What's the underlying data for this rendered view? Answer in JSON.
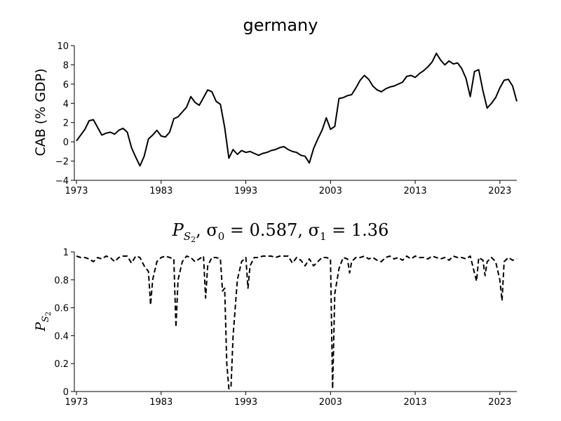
{
  "chart_data": [
    {
      "type": "line",
      "title": "germany",
      "ylabel": "CAB (% GDP)",
      "xlabel": "",
      "xlim": [
        1972.75,
        2025.0
      ],
      "ylim": [
        -4,
        10
      ],
      "xticks": [
        1973,
        1983,
        1993,
        2003,
        2013,
        2023
      ],
      "yticks": [
        -4,
        -2,
        0,
        2,
        4,
        6,
        8,
        10
      ],
      "ytick_labels": [
        "−4",
        "−2",
        "0",
        "2",
        "4",
        "6",
        "8",
        "10"
      ],
      "grid": false,
      "series": [
        {
          "style": "solid",
          "x": [
            1973.0,
            1973.5,
            1974.0,
            1974.5,
            1975.0,
            1975.5,
            1976.0,
            1976.5,
            1977.0,
            1977.5,
            1978.0,
            1978.5,
            1979.0,
            1979.5,
            1980.0,
            1980.5,
            1981.0,
            1981.5,
            1982.0,
            1982.5,
            1983.0,
            1983.5,
            1984.0,
            1984.5,
            1985.0,
            1985.5,
            1986.0,
            1986.5,
            1987.0,
            1987.5,
            1988.0,
            1988.5,
            1989.0,
            1989.5,
            1990.0,
            1990.5,
            1991.0,
            1991.5,
            1992.0,
            1992.5,
            1993.0,
            1993.5,
            1994.0,
            1994.5,
            1995.0,
            1995.5,
            1996.0,
            1996.5,
            1997.0,
            1997.5,
            1998.0,
            1998.5,
            1999.0,
            1999.5,
            2000.0,
            2000.5,
            2001.0,
            2001.5,
            2002.0,
            2002.5,
            2003.0,
            2003.5,
            2004.0,
            2004.5,
            2005.0,
            2005.5,
            2006.0,
            2006.5,
            2007.0,
            2007.5,
            2008.0,
            2008.5,
            2009.0,
            2009.5,
            2010.0,
            2010.5,
            2011.0,
            2011.5,
            2012.0,
            2012.5,
            2013.0,
            2013.5,
            2014.0,
            2014.5,
            2015.0,
            2015.5,
            2016.0,
            2016.5,
            2017.0,
            2017.5,
            2018.0,
            2018.5,
            2019.0,
            2019.5,
            2020.0,
            2020.5,
            2021.0,
            2021.5,
            2022.0,
            2022.5,
            2023.0,
            2023.5,
            2024.0,
            2024.5,
            2025.0
          ],
          "y": [
            0.1,
            0.7,
            1.3,
            2.2,
            2.3,
            1.5,
            0.7,
            0.9,
            1.0,
            0.8,
            1.2,
            1.4,
            1.0,
            -0.6,
            -1.6,
            -2.5,
            -1.5,
            0.3,
            0.7,
            1.2,
            0.6,
            0.5,
            1.0,
            2.4,
            2.6,
            3.1,
            3.6,
            4.7,
            4.1,
            3.8,
            4.6,
            5.4,
            5.2,
            4.2,
            3.9,
            1.5,
            -1.7,
            -0.8,
            -1.3,
            -0.9,
            -1.1,
            -1.0,
            -1.2,
            -1.4,
            -1.2,
            -1.1,
            -0.9,
            -0.8,
            -0.6,
            -0.5,
            -0.8,
            -1.0,
            -1.1,
            -1.4,
            -1.5,
            -2.2,
            -0.7,
            0.3,
            1.2,
            2.5,
            1.3,
            1.6,
            4.5,
            4.6,
            4.8,
            4.9,
            5.6,
            6.4,
            6.9,
            6.5,
            5.8,
            5.4,
            5.2,
            5.5,
            5.7,
            5.8,
            6.0,
            6.2,
            6.8,
            6.9,
            6.7,
            7.1,
            7.4,
            7.8,
            8.3,
            9.2,
            8.5,
            8.0,
            8.4,
            8.1,
            8.2,
            7.6,
            6.6,
            4.7,
            7.3,
            7.5,
            5.3,
            3.5,
            4.0,
            4.6,
            5.6,
            6.4,
            6.5,
            5.8,
            4.2
          ]
        }
      ]
    },
    {
      "type": "line",
      "title": "P_{S_2}, σ_0 = 0.587, σ_1 = 1.36",
      "title_parts": {
        "p": "P",
        "sub": "S",
        "subsub": "2",
        "rest": ", σ",
        "s0sub": "0",
        "eq0": " = 0.587, σ",
        "s1sub": "1",
        "eq1": " = 1.36"
      },
      "ylabel": "P_{S_2}",
      "ylabel_parts": {
        "p": "P",
        "sub": "S",
        "subsub": "2"
      },
      "xlabel": "",
      "xlim": [
        1972.75,
        2025.0
      ],
      "ylim": [
        0,
        1
      ],
      "xticks": [
        1973,
        1983,
        1993,
        2003,
        2013,
        2023
      ],
      "yticks": [
        0,
        0.2,
        0.4,
        0.6,
        0.8,
        1
      ],
      "ytick_labels": [
        "0",
        "0.2",
        "0.4",
        "0.6",
        "0.8",
        "1"
      ],
      "grid": false,
      "series": [
        {
          "style": "dashed",
          "x": [
            1973.0,
            1973.5,
            1974.0,
            1974.5,
            1975.0,
            1975.5,
            1976.0,
            1976.5,
            1977.0,
            1977.5,
            1978.0,
            1978.5,
            1979.0,
            1979.5,
            1980.0,
            1980.5,
            1981.0,
            1981.5,
            1981.75,
            1982.0,
            1982.5,
            1983.0,
            1983.5,
            1984.0,
            1984.5,
            1984.75,
            1985.0,
            1985.5,
            1986.0,
            1986.5,
            1987.0,
            1987.5,
            1988.0,
            1988.25,
            1988.5,
            1989.0,
            1989.5,
            1990.0,
            1990.25,
            1990.5,
            1990.75,
            1991.0,
            1991.25,
            1991.5,
            1992.0,
            1992.5,
            1993.0,
            1993.25,
            1993.5,
            1994.0,
            1994.5,
            1995.0,
            1995.5,
            1996.0,
            1996.5,
            1997.0,
            1997.5,
            1998.0,
            1998.5,
            1999.0,
            1999.5,
            2000.0,
            2000.5,
            2001.0,
            2001.5,
            2002.0,
            2002.5,
            2003.0,
            2003.25,
            2003.5,
            2004.0,
            2004.5,
            2005.0,
            2005.25,
            2005.5,
            2006.0,
            2006.5,
            2007.0,
            2007.5,
            2008.0,
            2008.5,
            2009.0,
            2009.5,
            2010.0,
            2010.5,
            2011.0,
            2011.5,
            2012.0,
            2012.5,
            2013.0,
            2013.5,
            2014.0,
            2014.5,
            2015.0,
            2015.5,
            2016.0,
            2016.5,
            2017.0,
            2017.5,
            2018.0,
            2018.5,
            2019.0,
            2019.5,
            2020.0,
            2020.25,
            2020.5,
            2021.0,
            2021.25,
            2021.5,
            2022.0,
            2022.5,
            2023.0,
            2023.25,
            2023.5,
            2024.0,
            2024.5,
            2025.0
          ],
          "y": [
            0.97,
            0.96,
            0.96,
            0.95,
            0.93,
            0.96,
            0.95,
            0.97,
            0.96,
            0.93,
            0.96,
            0.97,
            0.97,
            0.92,
            0.97,
            0.96,
            0.9,
            0.86,
            0.62,
            0.8,
            0.93,
            0.96,
            0.97,
            0.96,
            0.95,
            0.46,
            0.8,
            0.93,
            0.97,
            0.96,
            0.93,
            0.95,
            0.97,
            0.67,
            0.9,
            0.96,
            0.96,
            0.95,
            0.72,
            0.74,
            0.2,
            0.02,
            0.03,
            0.4,
            0.8,
            0.93,
            0.96,
            0.74,
            0.9,
            0.96,
            0.96,
            0.97,
            0.97,
            0.97,
            0.96,
            0.97,
            0.97,
            0.97,
            0.92,
            0.96,
            0.94,
            0.9,
            0.95,
            0.9,
            0.93,
            0.96,
            0.96,
            0.95,
            0.02,
            0.7,
            0.88,
            0.96,
            0.95,
            0.85,
            0.93,
            0.96,
            0.96,
            0.97,
            0.95,
            0.96,
            0.94,
            0.93,
            0.96,
            0.97,
            0.95,
            0.96,
            0.94,
            0.97,
            0.95,
            0.97,
            0.96,
            0.96,
            0.95,
            0.97,
            0.96,
            0.95,
            0.96,
            0.94,
            0.97,
            0.96,
            0.96,
            0.95,
            0.97,
            0.85,
            0.79,
            0.96,
            0.94,
            0.83,
            0.93,
            0.96,
            0.93,
            0.8,
            0.65,
            0.93,
            0.96,
            0.94,
            0.95
          ]
        }
      ]
    }
  ]
}
